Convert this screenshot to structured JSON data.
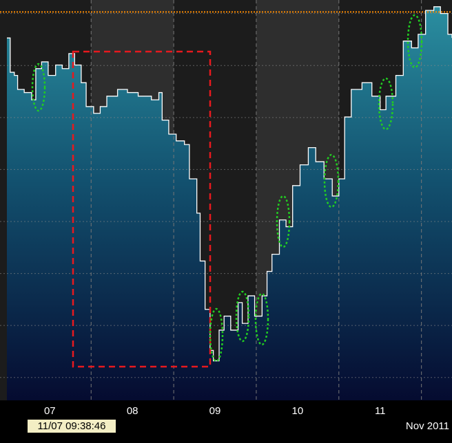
{
  "chart_data": {
    "type": "step",
    "x": [
      6.48,
      6.52,
      6.57,
      6.61,
      6.69,
      6.78,
      6.83,
      6.9,
      6.98,
      7.07,
      7.15,
      7.23,
      7.3,
      7.38,
      7.44,
      7.53,
      7.61,
      7.69,
      7.82,
      7.94,
      8.07,
      8.23,
      8.32,
      8.36,
      8.44,
      8.53,
      8.63,
      8.69,
      8.78,
      8.82,
      8.88,
      8.94,
      8.98,
      9.05,
      9.11,
      9.19,
      9.28,
      9.33,
      9.4,
      9.48,
      9.57,
      9.63,
      9.69,
      9.78,
      9.86,
      9.94,
      10.03,
      10.13,
      10.22,
      10.32,
      10.42,
      10.5,
      10.57,
      10.65,
      10.78,
      10.9,
      11.0,
      11.07,
      11.19,
      11.28,
      11.38,
      11.46,
      11.55,
      11.65,
      11.73,
      11.82,
      11.87
    ],
    "values": [
      7.53,
      6.87,
      6.81,
      6.54,
      6.48,
      6.34,
      6.94,
      7.07,
      6.81,
      7.01,
      6.94,
      7.23,
      7.01,
      6.67,
      6.21,
      6.08,
      6.21,
      6.41,
      6.54,
      6.48,
      6.41,
      6.34,
      6.48,
      5.95,
      5.68,
      5.55,
      5.48,
      4.82,
      4.16,
      3.24,
      2.31,
      1.52,
      1.32,
      1.91,
      2.18,
      1.91,
      2.44,
      2.04,
      2.57,
      2.18,
      2.57,
      3.04,
      3.37,
      4.03,
      3.9,
      4.69,
      5.09,
      5.42,
      5.15,
      4.82,
      4.49,
      4.82,
      6.01,
      6.54,
      6.67,
      6.41,
      6.15,
      6.41,
      6.81,
      7.47,
      7.34,
      7.6,
      8.06,
      8.13,
      8.0,
      7.6,
      7.53
    ],
    "color": "#ffffff",
    "xlim": [
      6.48,
      11.87
    ],
    "xticks": [
      {
        "value": 7,
        "label": "07"
      },
      {
        "value": 8,
        "label": "08"
      },
      {
        "value": 9,
        "label": "09"
      },
      {
        "value": 10,
        "label": "10"
      },
      {
        "value": 11,
        "label": "11"
      }
    ],
    "x_label": "Nov 2011",
    "cursor_label": "11/07 09:38:46",
    "ylim": [
      0.56,
      8.26
    ],
    "yticks": [
      1,
      2,
      3,
      4,
      5,
      6,
      7,
      8
    ],
    "reference_line": 8.03,
    "reference_color": "#ff8c00",
    "grid": true
  }
}
